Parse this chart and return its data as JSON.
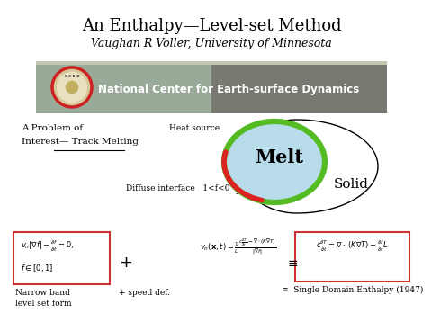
{
  "title": "An Enthalpy—Level-set Method",
  "subtitle": "Vaughan R Voller, University of Minnesota",
  "title_fontsize": 13,
  "subtitle_fontsize": 9,
  "bg_color": "#ffffff",
  "banner_bg_left": "#a0a888",
  "banner_bg_right": "#888870",
  "banner_text": "National Center for Earth-surface Dynamics",
  "banner_text_color": "#ffffff",
  "logo_ring_color": "#cc2222",
  "problem_text1": "A Problem of",
  "problem_text2": "Interest— Track Melting",
  "heat_source_label": "Heat source",
  "diffuse_label": "Diffuse interface   1<f<0",
  "melt_label": "Melt",
  "solid_label": "Solid",
  "melt_color": "#b8dcea",
  "green_color": "#55bb22",
  "red_color": "#dd2222",
  "narrow_band_label1": "Narrow band",
  "narrow_band_label2": "level set form",
  "speed_def_label": "+ speed def.",
  "single_domain_label": "≡  Single Domain Enthalpy (1947)",
  "box_color": "#cc3333"
}
